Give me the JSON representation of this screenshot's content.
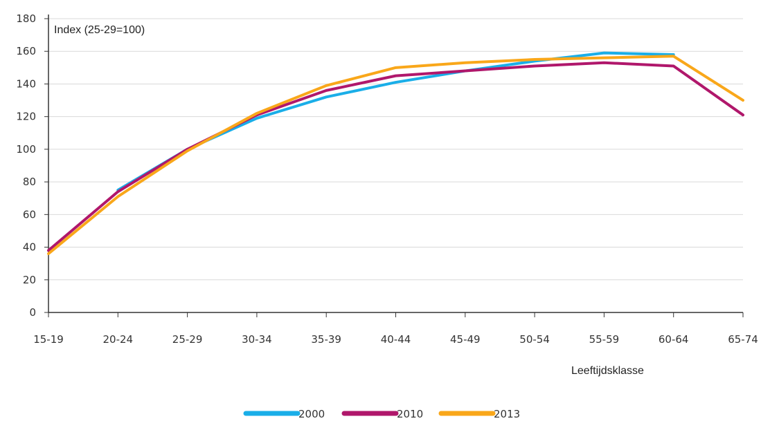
{
  "chart_data": {
    "type": "line",
    "ylabel": "Index (25-29=100)",
    "xlabel": "Leeftijdsklasse",
    "categories": [
      "15-19",
      "20-24",
      "25-29",
      "30-34",
      "35-39",
      "40-44",
      "45-49",
      "50-54",
      "55-59",
      "60-64",
      "65-74"
    ],
    "yticks": [
      "0",
      "20",
      "40",
      "60",
      "80",
      "100",
      "120",
      "140",
      "160",
      "180"
    ],
    "ylim": [
      0,
      180
    ],
    "grid": true,
    "legend_position": "bottom-center",
    "series": [
      {
        "name": "2000",
        "color": "#1aaee8",
        "values": [
          null,
          75,
          100,
          119,
          132,
          141,
          148,
          154,
          159,
          158,
          null
        ]
      },
      {
        "name": "2010",
        "color": "#b0176b",
        "values": [
          38,
          74,
          100,
          121,
          136,
          145,
          148,
          151,
          153,
          151,
          121
        ]
      },
      {
        "name": "2013",
        "color": "#f9a71a",
        "values": [
          36,
          71,
          99,
          122,
          139,
          150,
          153,
          155,
          156,
          157,
          130
        ]
      }
    ]
  }
}
